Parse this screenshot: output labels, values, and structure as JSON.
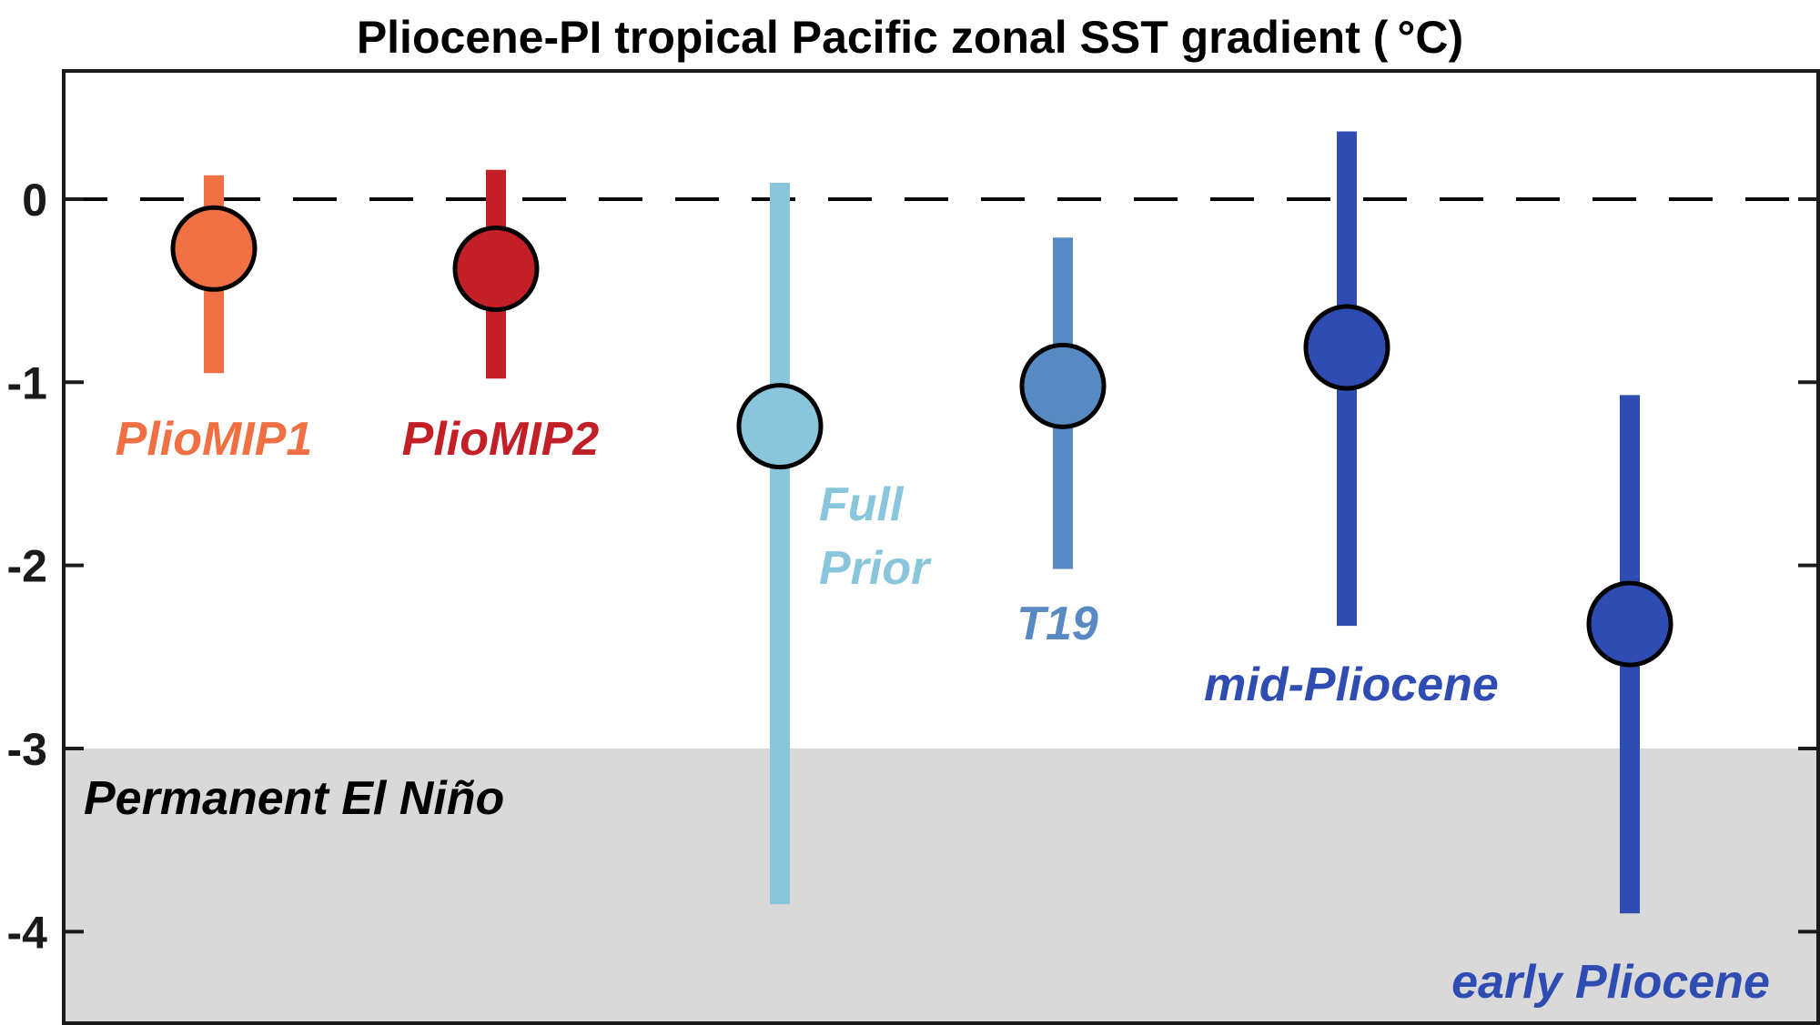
{
  "chart_data": {
    "type": "scatter",
    "title": "Pliocene-PI tropical Pacific zonal SST gradient (",
    "title_unit": "°C)",
    "ylim": [
      -4.5,
      0.7
    ],
    "yticks": [
      0,
      -1,
      -2,
      -3,
      -4
    ],
    "ytick_labels": [
      "0",
      "-1",
      "-2",
      "-3",
      "-4"
    ],
    "grid": false,
    "reference_line": {
      "y": 0,
      "style": "dashed"
    },
    "shaded_region": {
      "from": -4.5,
      "to": -3,
      "color": "#d9d9d9",
      "label": "Permanent El Niño"
    },
    "series": [
      {
        "label_lines": [
          "PlioMIP1"
        ],
        "value": -0.27,
        "low": -0.95,
        "high": 0.13,
        "color": "#f07043"
      },
      {
        "label_lines": [
          "PlioMIP2"
        ],
        "value": -0.38,
        "low": -0.98,
        "high": 0.16,
        "color": "#c31f27"
      },
      {
        "label_lines": [
          "Full",
          "Prior"
        ],
        "value": -1.24,
        "low": -3.85,
        "high": 0.09,
        "color": "#8ac6db"
      },
      {
        "label_lines": [
          "T19"
        ],
        "value": -1.02,
        "low": -2.02,
        "high": -0.21,
        "color": "#5789c2"
      },
      {
        "label_lines": [
          "mid-Pliocene"
        ],
        "value": -0.81,
        "low": -2.33,
        "high": 0.37,
        "color": "#2f4cb3"
      },
      {
        "label_lines": [
          "early Pliocene"
        ],
        "value": -2.32,
        "low": -3.9,
        "high": -1.07,
        "color": "#2f4cb3"
      }
    ]
  }
}
